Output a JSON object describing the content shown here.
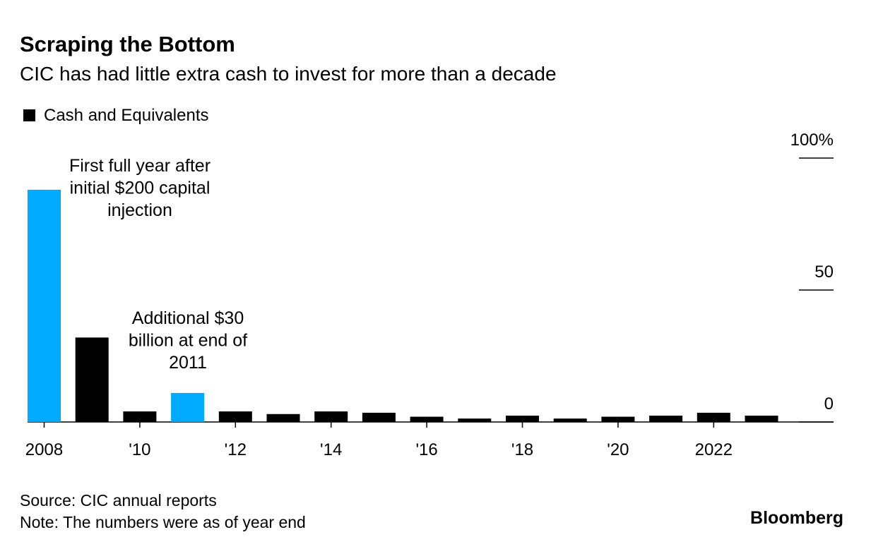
{
  "chart_data": {
    "type": "bar",
    "title": "Scraping the Bottom",
    "subtitle": "CIC has had little extra cash to invest for more than a decade",
    "categories": [
      "2008",
      null,
      "'10",
      null,
      "'12",
      null,
      "'14",
      null,
      "'16",
      null,
      "'18",
      null,
      "'20",
      null,
      "2022",
      null
    ],
    "series": [
      {
        "name": "Cash and Equivalents",
        "color": "#000000",
        "values": [
          88,
          32,
          4,
          11,
          4,
          3,
          4,
          3.5,
          2,
          1.3,
          2.4,
          1.3,
          2,
          2.4,
          3.5,
          2.4
        ]
      }
    ],
    "bar_colors": [
      "#00aaff",
      "#000000",
      "#000000",
      "#00aaff",
      "#000000",
      "#000000",
      "#000000",
      "#000000",
      "#000000",
      "#000000",
      "#000000",
      "#000000",
      "#000000",
      "#000000",
      "#000000",
      "#000000"
    ],
    "ylim": [
      0,
      100
    ],
    "yticks": [
      0,
      50,
      {
        "value": 100,
        "label": "100%"
      }
    ],
    "annotations": [
      {
        "lines": [
          "First full year after",
          "initial $200 capital",
          "injection"
        ]
      },
      {
        "lines": [
          "Additional $30",
          "billion at end of",
          "2011"
        ]
      }
    ],
    "source": "Source: CIC annual reports",
    "note": "Note: The numbers were as of year end",
    "brand": "Bloomberg"
  }
}
